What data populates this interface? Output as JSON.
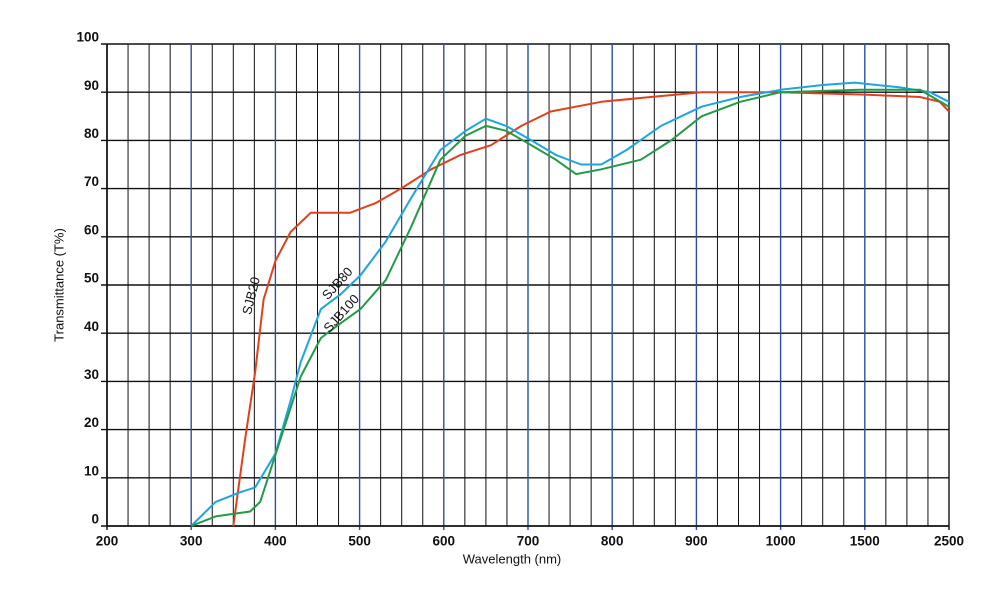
{
  "chart_data": {
    "type": "line",
    "x_label": "Wavelength (nm)",
    "y_label": "Transmittance (T%)",
    "xticks": [
      200,
      300,
      400,
      500,
      600,
      700,
      800,
      900,
      1000,
      1500,
      2500
    ],
    "xminorticks": [
      225,
      250,
      275,
      325,
      350,
      375,
      425,
      450,
      475,
      525,
      550,
      575,
      625,
      650,
      675,
      725,
      750,
      775,
      825,
      850,
      875,
      925,
      950,
      975,
      1125,
      1250,
      1375,
      1750,
      2000,
      2250
    ],
    "xlim": [
      200,
      2500
    ],
    "ylim": [
      0,
      100
    ],
    "yticks": [
      0,
      10,
      20,
      30,
      40,
      50,
      60,
      70,
      80,
      90,
      100
    ],
    "grid": true,
    "major_grid_color": "#2b4fa8",
    "minor_grid_color": "#111111",
    "series": [
      {
        "name": "SJB20",
        "color": "#e2401c",
        "x": [
          350,
          364,
          376,
          386,
          400,
          418,
          442,
          465,
          489,
          519,
          549,
          585,
          620,
          656,
          692,
          727,
          787,
          846,
          906,
          1000,
          1500,
          2155,
          2390,
          2500
        ],
        "values": [
          0,
          18,
          32,
          47,
          55,
          61,
          65,
          65,
          65,
          67,
          70,
          74,
          77,
          79,
          83,
          86,
          88,
          89,
          90,
          90,
          89.5,
          89,
          88,
          86
        ]
      },
      {
        "name": "SJB80",
        "color": "#1ea5df",
        "x": [
          300,
          329,
          358,
          376,
          400,
          418,
          430,
          454,
          477,
          501,
          531,
          561,
          596,
          626,
          650,
          674,
          704,
          733,
          763,
          787,
          817,
          858,
          906,
          952,
          1000,
          1250,
          1440,
          1917,
          2274,
          2500
        ],
        "values": [
          0,
          5,
          7,
          8,
          15,
          26,
          34,
          45,
          48,
          52,
          59,
          68,
          78,
          82,
          84.5,
          83,
          80,
          77,
          75,
          75,
          78,
          83,
          87,
          89,
          90.5,
          91.5,
          92,
          91,
          90,
          88
        ]
      },
      {
        "name": "SJB100",
        "color": "#239a48",
        "x": [
          300,
          329,
          370,
          382,
          406,
          430,
          454,
          477,
          501,
          531,
          561,
          596,
          626,
          650,
          674,
          704,
          733,
          757,
          787,
          834,
          870,
          906,
          952,
          1000,
          1470,
          2155,
          2500
        ],
        "values": [
          0,
          2,
          3,
          5,
          18,
          31,
          39,
          42,
          45,
          51,
          62,
          76,
          81,
          83,
          82,
          79,
          76,
          73,
          74,
          76,
          80,
          85,
          88,
          90,
          90.5,
          90.5,
          87
        ]
      }
    ]
  }
}
